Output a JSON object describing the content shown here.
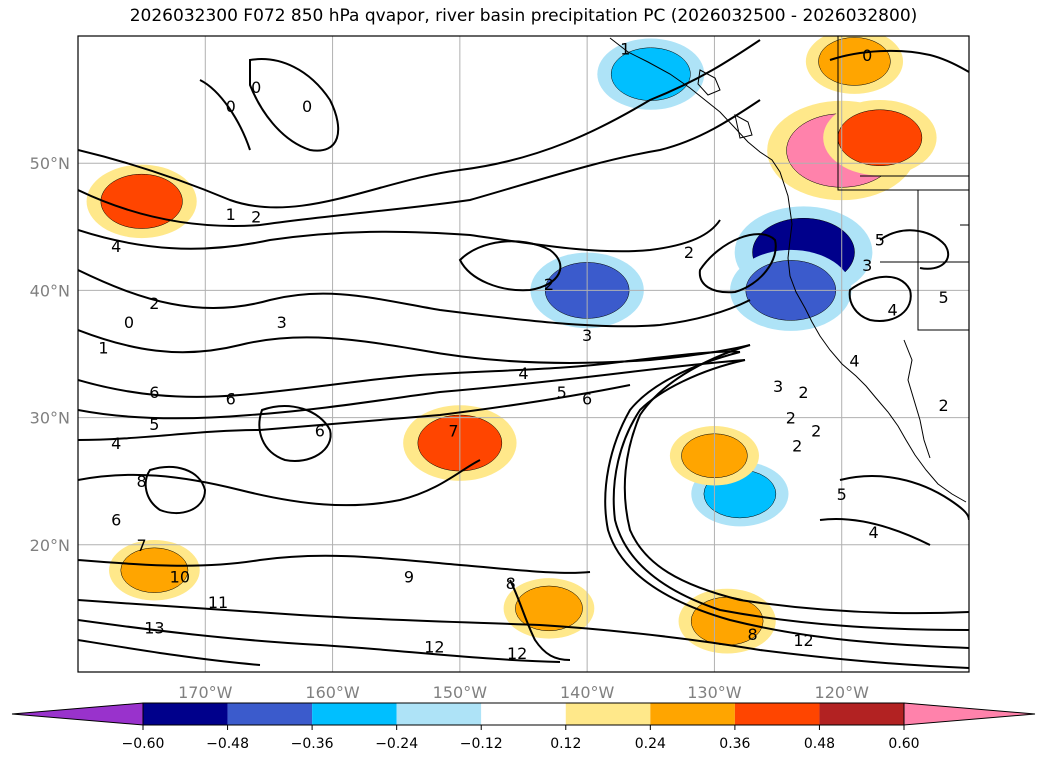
{
  "title": "2026032300 F072 850 hPa qvapor, river basin precipitation PC (2026032500 - 2026032800)",
  "chart_data": {
    "type": "heatmap",
    "projection": "latitude-longitude map",
    "xlim": [
      -180,
      -110
    ],
    "ylim": [
      10,
      60
    ],
    "grid": true,
    "x_ticks": [
      {
        "value": -170,
        "label": "170°W"
      },
      {
        "value": -160,
        "label": "160°W"
      },
      {
        "value": -150,
        "label": "150°W"
      },
      {
        "value": -140,
        "label": "140°W"
      },
      {
        "value": -130,
        "label": "130°W"
      },
      {
        "value": -120,
        "label": "120°W"
      }
    ],
    "y_ticks": [
      {
        "value": 20,
        "label": "20°N"
      },
      {
        "value": 30,
        "label": "30°N"
      },
      {
        "value": 40,
        "label": "40°N"
      },
      {
        "value": 50,
        "label": "50°N"
      }
    ],
    "colorbar": {
      "placement": "bottom",
      "extend": "both",
      "levels": [
        -0.6,
        -0.48,
        -0.36,
        -0.24,
        -0.12,
        0.12,
        0.24,
        0.36,
        0.48,
        0.6
      ],
      "tick_labels": [
        "−0.60",
        "−0.48",
        "−0.36",
        "−0.24",
        "−0.12",
        "0.12",
        "0.24",
        "0.36",
        "0.48",
        "0.60"
      ],
      "colors": [
        "#9932cc",
        "#00008b",
        "#3b5bcc",
        "#00bfff",
        "#aee3f7",
        "#ffffff",
        "#ffe88a",
        "#ffa500",
        "#ff4500",
        "#b22222",
        "#ff82ab"
      ]
    },
    "shaded_regions": [
      {
        "lon": -123,
        "lat": 43,
        "value": -0.55
      },
      {
        "lon": -124,
        "lat": 40,
        "value": -0.45
      },
      {
        "lon": -140,
        "lat": 40,
        "value": -0.4
      },
      {
        "lon": -128,
        "lat": 24,
        "value": -0.3
      },
      {
        "lon": -135,
        "lat": 57,
        "value": -0.36
      },
      {
        "lon": -120,
        "lat": 51,
        "value": 0.62
      },
      {
        "lon": -117,
        "lat": 52,
        "value": 0.4
      },
      {
        "lon": -150,
        "lat": 28,
        "value": 0.4
      },
      {
        "lon": -175,
        "lat": 47,
        "value": 0.38
      },
      {
        "lon": -119,
        "lat": 58,
        "value": 0.3
      },
      {
        "lon": -129,
        "lat": 14,
        "value": 0.3
      },
      {
        "lon": -143,
        "lat": 15,
        "value": 0.26
      },
      {
        "lon": -174,
        "lat": 18,
        "value": 0.26
      },
      {
        "lon": -130,
        "lat": 27,
        "value": 0.25
      }
    ],
    "contours": {
      "variable": "850 hPa qvapor",
      "labels": [
        {
          "lon": -137,
          "lat": 59,
          "text": "1"
        },
        {
          "lon": -118,
          "lat": 58.5,
          "text": "0"
        },
        {
          "lon": -166,
          "lat": 56,
          "text": "0"
        },
        {
          "lon": -168,
          "lat": 54.5,
          "text": "0"
        },
        {
          "lon": -162,
          "lat": 54.5,
          "text": "0"
        },
        {
          "lon": -168,
          "lat": 46,
          "text": "1"
        },
        {
          "lon": -166,
          "lat": 45.8,
          "text": "2"
        },
        {
          "lon": -177,
          "lat": 43.5,
          "text": "4"
        },
        {
          "lon": -174,
          "lat": 39,
          "text": "2"
        },
        {
          "lon": -176,
          "lat": 37.5,
          "text": "0"
        },
        {
          "lon": -178,
          "lat": 35.5,
          "text": "1"
        },
        {
          "lon": -174,
          "lat": 32,
          "text": "6"
        },
        {
          "lon": -168,
          "lat": 31.5,
          "text": "6"
        },
        {
          "lon": -174,
          "lat": 29.5,
          "text": "5"
        },
        {
          "lon": -177,
          "lat": 28,
          "text": "4"
        },
        {
          "lon": -164,
          "lat": 37.5,
          "text": "3"
        },
        {
          "lon": -161,
          "lat": 29,
          "text": "6"
        },
        {
          "lon": -145,
          "lat": 33.5,
          "text": "4"
        },
        {
          "lon": -142,
          "lat": 32,
          "text": "5"
        },
        {
          "lon": -140,
          "lat": 31.5,
          "text": "6"
        },
        {
          "lon": -140,
          "lat": 36.5,
          "text": "3"
        },
        {
          "lon": -143,
          "lat": 40.5,
          "text": "2"
        },
        {
          "lon": -150.5,
          "lat": 29,
          "text": "7"
        },
        {
          "lon": -175,
          "lat": 25,
          "text": "8"
        },
        {
          "lon": -177,
          "lat": 22,
          "text": "6"
        },
        {
          "lon": -175,
          "lat": 20,
          "text": "7"
        },
        {
          "lon": -172,
          "lat": 17.5,
          "text": "10"
        },
        {
          "lon": -169,
          "lat": 15.5,
          "text": "11"
        },
        {
          "lon": -174,
          "lat": 13.5,
          "text": "13"
        },
        {
          "lon": -154,
          "lat": 17.5,
          "text": "9"
        },
        {
          "lon": -146,
          "lat": 17,
          "text": "8"
        },
        {
          "lon": -152,
          "lat": 12,
          "text": "12"
        },
        {
          "lon": -145.5,
          "lat": 11.5,
          "text": "12"
        },
        {
          "lon": -127,
          "lat": 13,
          "text": "8"
        },
        {
          "lon": -123,
          "lat": 12.5,
          "text": "12"
        },
        {
          "lon": -132,
          "lat": 43,
          "text": "2"
        },
        {
          "lon": -125,
          "lat": 32.5,
          "text": "3"
        },
        {
          "lon": -123,
          "lat": 32,
          "text": "2"
        },
        {
          "lon": -124,
          "lat": 30,
          "text": "2"
        },
        {
          "lon": -122,
          "lat": 29,
          "text": "2"
        },
        {
          "lon": -123.5,
          "lat": 27.8,
          "text": "2"
        },
        {
          "lon": -117,
          "lat": 44,
          "text": "5"
        },
        {
          "lon": -118,
          "lat": 42,
          "text": "3"
        },
        {
          "lon": -116,
          "lat": 38.5,
          "text": "4"
        },
        {
          "lon": -119,
          "lat": 34.5,
          "text": "4"
        },
        {
          "lon": -112,
          "lat": 39.5,
          "text": "5"
        },
        {
          "lon": -112,
          "lat": 31,
          "text": "2"
        },
        {
          "lon": -120,
          "lat": 24,
          "text": "5"
        },
        {
          "lon": -117.5,
          "lat": 21,
          "text": "4"
        }
      ]
    }
  }
}
